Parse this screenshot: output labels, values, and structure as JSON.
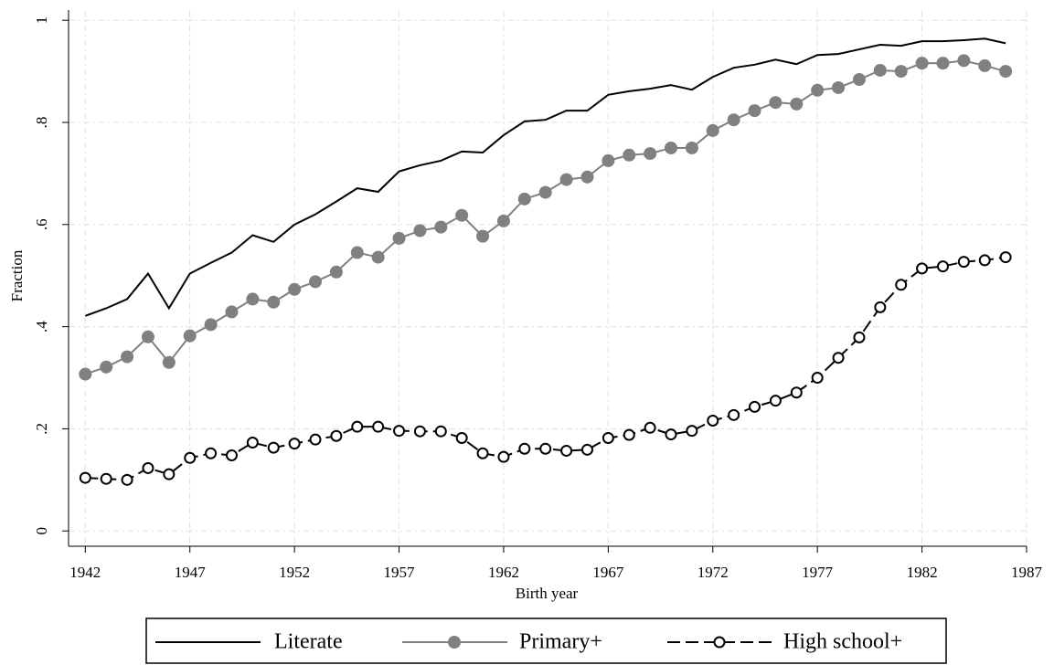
{
  "chart_data": {
    "type": "line",
    "x_label": "Birth year",
    "y_label": "Fraction",
    "x": [
      1942,
      1943,
      1944,
      1945,
      1946,
      1947,
      1948,
      1949,
      1950,
      1951,
      1952,
      1953,
      1954,
      1955,
      1956,
      1957,
      1958,
      1959,
      1960,
      1961,
      1962,
      1963,
      1964,
      1965,
      1966,
      1967,
      1968,
      1969,
      1970,
      1971,
      1972,
      1973,
      1974,
      1975,
      1976,
      1977,
      1978,
      1979,
      1980,
      1981,
      1982,
      1983,
      1984,
      1985,
      1986
    ],
    "series": [
      {
        "name": "Literate",
        "color": "#000000",
        "marker": "none",
        "line_style": "solid",
        "values": [
          0.421,
          0.436,
          0.454,
          0.504,
          0.436,
          0.504,
          0.525,
          0.545,
          0.579,
          0.566,
          0.6,
          0.62,
          0.645,
          0.671,
          0.664,
          0.704,
          0.716,
          0.725,
          0.743,
          0.741,
          0.775,
          0.802,
          0.805,
          0.823,
          0.823,
          0.854,
          0.861,
          0.866,
          0.873,
          0.864,
          0.889,
          0.907,
          0.913,
          0.923,
          0.914,
          0.932,
          0.934,
          0.943,
          0.952,
          0.95,
          0.959,
          0.959,
          0.961,
          0.964,
          0.955
        ]
      },
      {
        "name": "Primary+",
        "color": "#808080",
        "marker": "filled",
        "line_style": "solid",
        "values": [
          0.307,
          0.321,
          0.341,
          0.38,
          0.33,
          0.382,
          0.404,
          0.429,
          0.454,
          0.448,
          0.473,
          0.488,
          0.507,
          0.545,
          0.536,
          0.573,
          0.588,
          0.595,
          0.618,
          0.577,
          0.607,
          0.65,
          0.663,
          0.688,
          0.693,
          0.725,
          0.736,
          0.739,
          0.75,
          0.75,
          0.784,
          0.805,
          0.823,
          0.839,
          0.836,
          0.863,
          0.868,
          0.884,
          0.902,
          0.9,
          0.916,
          0.916,
          0.921,
          0.911,
          0.9
        ]
      },
      {
        "name": "High school+",
        "color": "#000000",
        "marker": "hollow",
        "line_style": "dashed",
        "values": [
          0.104,
          0.102,
          0.1,
          0.123,
          0.111,
          0.143,
          0.152,
          0.148,
          0.173,
          0.163,
          0.171,
          0.179,
          0.186,
          0.204,
          0.204,
          0.196,
          0.195,
          0.195,
          0.182,
          0.152,
          0.145,
          0.161,
          0.161,
          0.157,
          0.159,
          0.182,
          0.188,
          0.202,
          0.189,
          0.196,
          0.216,
          0.227,
          0.243,
          0.255,
          0.271,
          0.3,
          0.339,
          0.379,
          0.438,
          0.482,
          0.514,
          0.518,
          0.527,
          0.53,
          0.536
        ]
      }
    ],
    "xlim": [
      1941.2,
      1987
    ],
    "xticks": [
      1942,
      1947,
      1952,
      1957,
      1962,
      1967,
      1972,
      1977,
      1982,
      1987
    ],
    "ylim": [
      -0.03,
      1.02
    ],
    "yticks": [
      0,
      {
        "value": 0.2,
        "label": ".2"
      },
      {
        "value": 0.4,
        "label": ".4"
      },
      {
        "value": 0.6,
        "label": ".6"
      },
      {
        "value": 0.8,
        "label": ".8"
      },
      1
    ],
    "grid": true,
    "legend_position": "bottom"
  }
}
